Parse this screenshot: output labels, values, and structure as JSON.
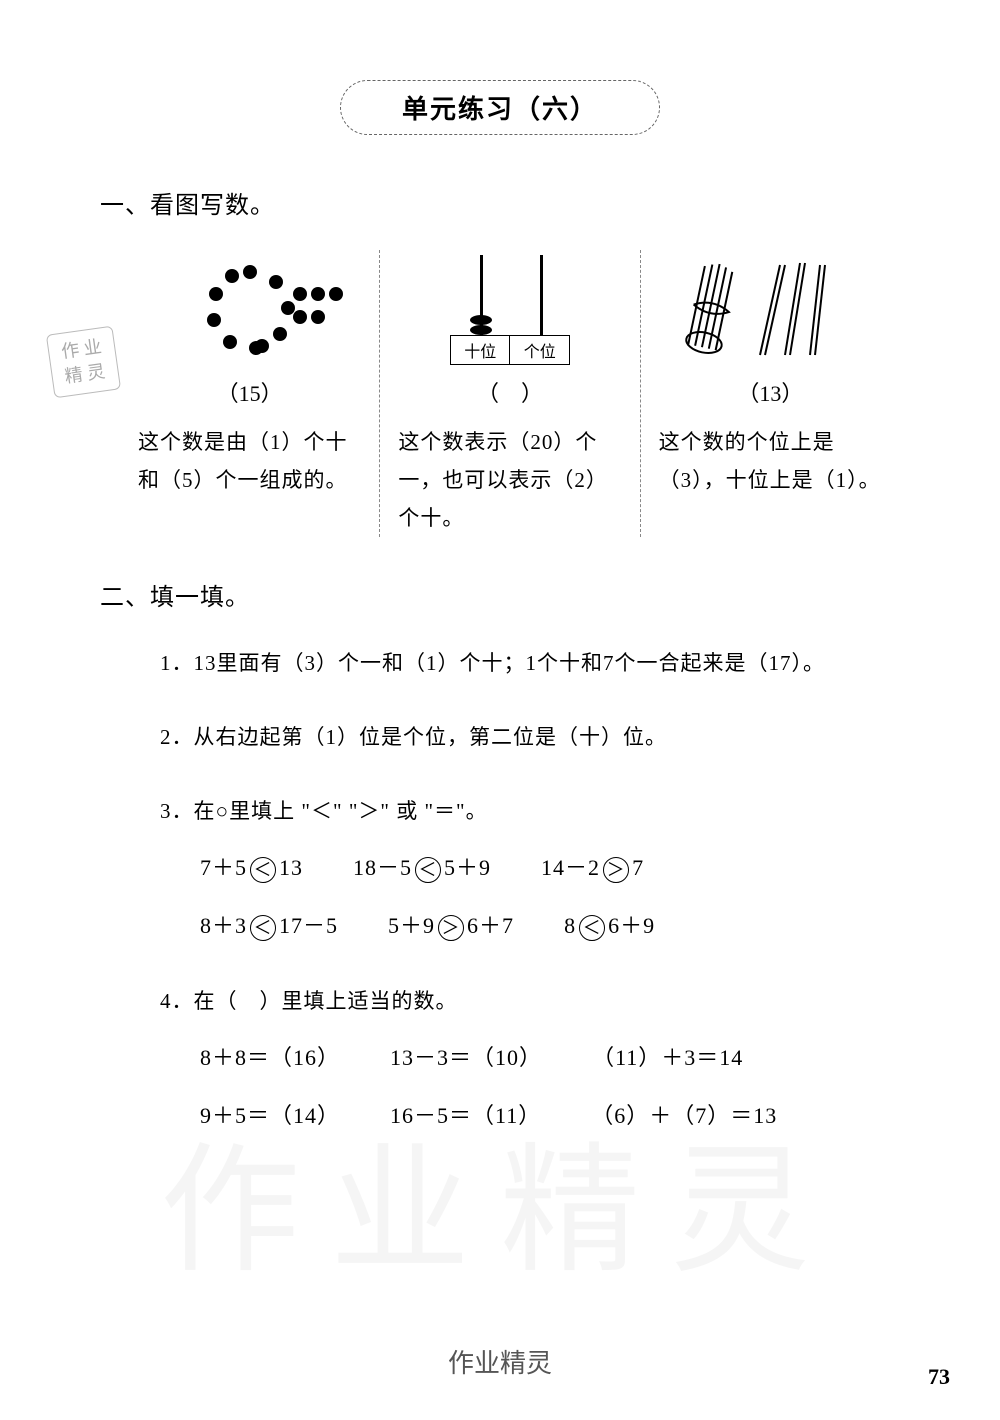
{
  "header": "单元练习（六）",
  "section1": {
    "title": "一、看图写数。"
  },
  "col1": {
    "answer": "（15）",
    "text_pre": "这个数是由（",
    "a1": "1",
    "text_mid1": "）个十和（",
    "a2": "5",
    "text_mid2": "）个一组成的。"
  },
  "col2": {
    "place_tens": "十位",
    "place_ones": "个位",
    "blank": "（　）",
    "text_pre": "这个数表示（",
    "a1": "20",
    "text_mid1": "）个一，也可以表示（",
    "a2": "2",
    "text_mid2": "）个十。"
  },
  "col3": {
    "answer": "（13）",
    "text_pre": "这个数的个位上是（",
    "a1": "3",
    "text_mid1": "），十位上是（",
    "a2": "1",
    "text_mid2": "）。"
  },
  "section2": {
    "title": "二、填一填。"
  },
  "q1": {
    "p1": "1．13里面有（",
    "a1": "3",
    "p2": "）个一和（",
    "a2": "1",
    "p3": "）个十；1个十和7个一合起来是（",
    "a3": "17",
    "p4": "）。"
  },
  "q2": {
    "p1": "2．从右边起第（",
    "a1": "1",
    "p2": "）位是个位，第二位是（",
    "a2": "十",
    "p3": "）位。"
  },
  "q3": {
    "title": "3．在○里填上 \"＜\" \"＞\" 或 \"＝\"。",
    "row1": [
      {
        "l": "7＋5",
        "op": "＜",
        "r": "13"
      },
      {
        "l": "18－5",
        "op": "＜",
        "r": "5＋9"
      },
      {
        "l": "14－2",
        "op": "＞",
        "r": "7"
      }
    ],
    "row2": [
      {
        "l": "8＋3",
        "op": "＜",
        "r": "17－5"
      },
      {
        "l": "5＋9",
        "op": "＞",
        "r": "6＋7"
      },
      {
        "l": "8",
        "op": "＜",
        "r": "6＋9"
      }
    ]
  },
  "q4": {
    "title": "4．在（　）里填上适当的数。",
    "row1": [
      {
        "expr": "8＋8＝（",
        "ans": "16",
        "tail": "）"
      },
      {
        "expr": "13－3＝（",
        "ans": "10",
        "tail": "）"
      },
      {
        "expr": "（",
        "ans": "11",
        "tail": "）＋3＝14"
      }
    ],
    "row2": [
      {
        "expr": "9＋5＝（",
        "ans": "14",
        "tail": "）"
      },
      {
        "expr": "16－5＝（",
        "ans": "11",
        "tail": "）"
      },
      {
        "expr": "（",
        "ans": "6",
        "mid": "）＋（",
        "ans2": "7",
        "tail": "）＝13"
      }
    ]
  },
  "stamp": {
    "l1": "作 业",
    "l2": "精 灵"
  },
  "footer": "作业精灵",
  "page": "73",
  "watermark": "作业精灵",
  "colors": {
    "text": "#000000",
    "handwriting": "#222222",
    "dashed": "#666666",
    "watermark": "rgba(0,0,0,0.04)"
  },
  "typography": {
    "body_font": "SimSun",
    "hand_font": "Comic Sans MS",
    "header_fontsize": 26,
    "section_fontsize": 24,
    "body_fontsize": 21
  }
}
